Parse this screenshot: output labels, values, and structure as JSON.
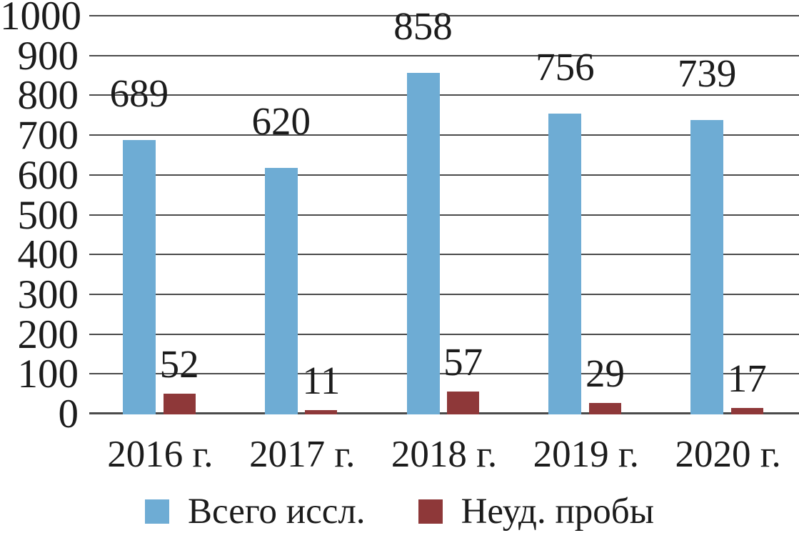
{
  "chart_data": {
    "type": "bar",
    "title": "",
    "xlabel": "",
    "ylabel": "",
    "categories": [
      "2016 г.",
      "2017 г.",
      "2018 г.",
      "2019 г.",
      "2020 г."
    ],
    "series": [
      {
        "name": "Всего иссл.",
        "color": "#6EACD4",
        "values": [
          689,
          620,
          858,
          756,
          739
        ]
      },
      {
        "name": "Неуд. пробы",
        "color": "#8E3839",
        "values": [
          52,
          11,
          57,
          29,
          17
        ]
      }
    ],
    "ylim": [
      0,
      1000
    ],
    "y_ticks": [
      0,
      100,
      200,
      300,
      400,
      500,
      600,
      700,
      800,
      900,
      1000
    ],
    "grid": true,
    "gridline_color": "#4a4a4a",
    "text_color": "#1c1c1c",
    "background_color": "#ffffff",
    "legend_position": "bottom",
    "data_labels": true
  }
}
